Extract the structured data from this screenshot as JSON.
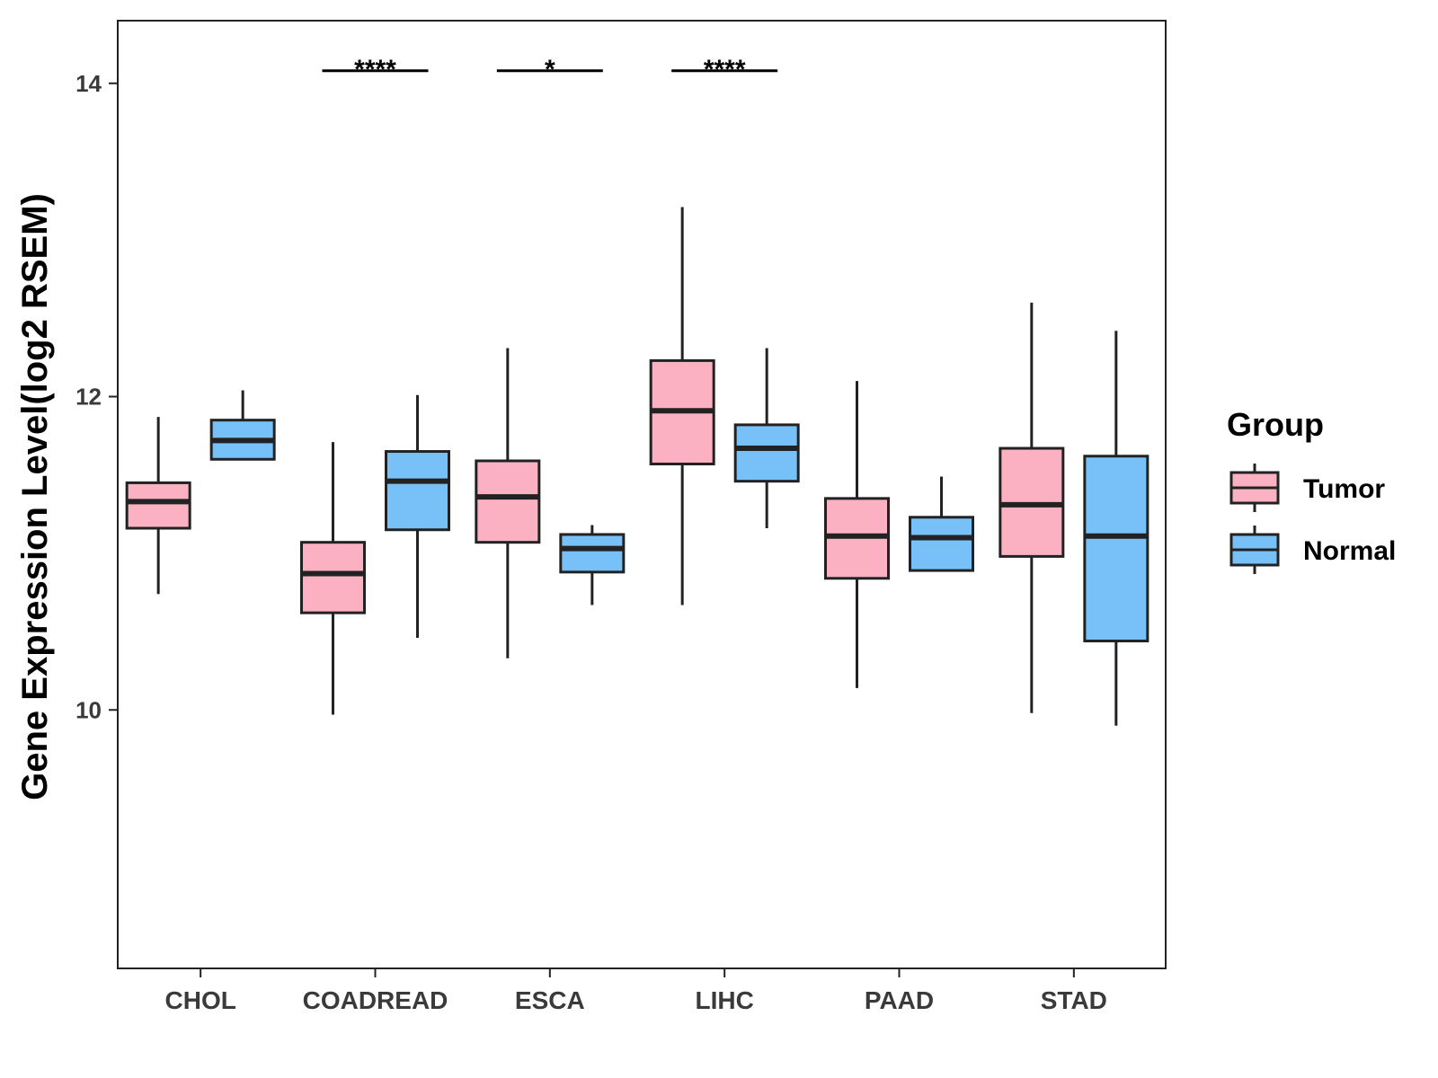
{
  "chart_data": {
    "type": "boxplot",
    "title": "",
    "xlabel": "",
    "ylabel": "Gene Expression Level(log2 RSEM)",
    "ylim": [
      8.35,
      14.4
    ],
    "yticks": [
      "10",
      "12",
      "14"
    ],
    "categories": [
      "CHOL",
      "COADREAD",
      "ESCA",
      "LIHC",
      "PAAD",
      "STAD"
    ],
    "legend": {
      "title": "Group",
      "position": "right"
    },
    "series": [
      {
        "name": "Tumor",
        "color": "#FBB1C1",
        "boxes": [
          {
            "min": 10.74,
            "q1": 11.16,
            "median": 11.33,
            "q3": 11.45,
            "max": 11.87
          },
          {
            "min": 9.97,
            "q1": 10.62,
            "median": 10.87,
            "q3": 11.07,
            "max": 11.71
          },
          {
            "min": 10.33,
            "q1": 11.07,
            "median": 11.36,
            "q3": 11.59,
            "max": 12.31
          },
          {
            "min": 10.67,
            "q1": 11.57,
            "median": 11.91,
            "q3": 12.23,
            "max": 13.21
          },
          {
            "min": 10.14,
            "q1": 10.84,
            "median": 11.11,
            "q3": 11.35,
            "max": 12.1
          },
          {
            "min": 9.98,
            "q1": 10.98,
            "median": 11.31,
            "q3": 11.67,
            "max": 12.6
          }
        ]
      },
      {
        "name": "Normal",
        "color": "#77C1F8",
        "boxes": [
          {
            "min": 11.6,
            "q1": 11.6,
            "median": 11.72,
            "q3": 11.85,
            "max": 12.04
          },
          {
            "min": 10.46,
            "q1": 11.15,
            "median": 11.46,
            "q3": 11.65,
            "max": 12.01
          },
          {
            "min": 10.67,
            "q1": 10.88,
            "median": 11.03,
            "q3": 11.12,
            "max": 11.18
          },
          {
            "min": 11.16,
            "q1": 11.46,
            "median": 11.67,
            "q3": 11.82,
            "max": 12.31
          },
          {
            "min": 10.89,
            "q1": 10.89,
            "median": 11.1,
            "q3": 11.23,
            "max": 11.49
          },
          {
            "min": 9.9,
            "q1": 10.44,
            "median": 11.11,
            "q3": 11.62,
            "max": 12.42
          }
        ]
      }
    ],
    "significance": [
      {
        "category": "COADREAD",
        "label": "****",
        "y": 14.08
      },
      {
        "category": "ESCA",
        "label": "*",
        "y": 14.08
      },
      {
        "category": "LIHC",
        "label": "****",
        "y": 14.08
      }
    ]
  }
}
